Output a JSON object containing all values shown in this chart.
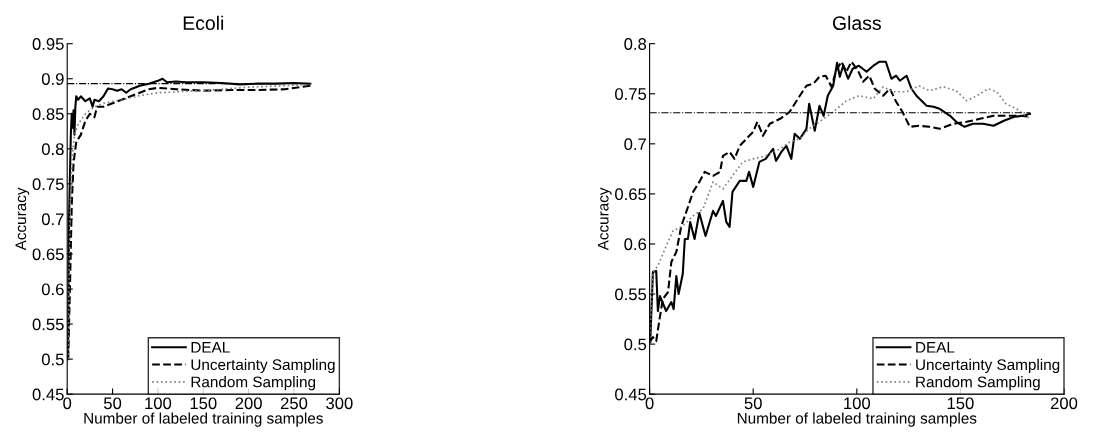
{
  "chart_data": [
    {
      "type": "line",
      "title": "Ecoli",
      "xlabel": "Number of labeled training samples",
      "ylabel": "Accuracy",
      "xlim": [
        0,
        300
      ],
      "xticks": [
        0,
        50,
        100,
        150,
        200,
        250,
        300
      ],
      "ylim": [
        0.45,
        0.95
      ],
      "yticks": [
        0.45,
        0.5,
        0.55,
        0.6,
        0.65,
        0.7,
        0.75,
        0.8,
        0.85,
        0.9,
        0.95
      ],
      "grid": false,
      "legend": "bottom right",
      "marker": "none",
      "ref_lines": [
        {
          "axis": "y",
          "value": 0.893,
          "color": "#000000",
          "line_style": "dashdot"
        }
      ],
      "series": [
        {
          "name": "DEAL",
          "color": "#000000",
          "line_style": "solid",
          "x": [
            1,
            2,
            3,
            4,
            5,
            6,
            7,
            8,
            9,
            10,
            12,
            15,
            20,
            25,
            28,
            30,
            35,
            40,
            45,
            50,
            55,
            60,
            65,
            70,
            80,
            90,
            100,
            105,
            110,
            120,
            130,
            150,
            170,
            190,
            210,
            230,
            250,
            268
          ],
          "values": [
            0.5,
            0.7,
            0.76,
            0.82,
            0.85,
            0.83,
            0.855,
            0.82,
            0.86,
            0.875,
            0.87,
            0.875,
            0.868,
            0.872,
            0.86,
            0.87,
            0.868,
            0.875,
            0.886,
            0.885,
            0.883,
            0.885,
            0.88,
            0.885,
            0.89,
            0.893,
            0.897,
            0.9,
            0.895,
            0.896,
            0.895,
            0.895,
            0.894,
            0.892,
            0.893,
            0.893,
            0.894,
            0.893
          ]
        },
        {
          "name": "Uncertainty Sampling",
          "color": "#000000",
          "line_style": "dashed",
          "x": [
            1,
            3,
            5,
            7,
            10,
            15,
            20,
            25,
            30,
            33,
            40,
            50,
            60,
            70,
            80,
            90,
            100,
            120,
            150,
            180,
            210,
            240,
            268
          ],
          "values": [
            0.5,
            0.6,
            0.72,
            0.78,
            0.81,
            0.82,
            0.84,
            0.85,
            0.845,
            0.86,
            0.86,
            0.865,
            0.87,
            0.875,
            0.88,
            0.885,
            0.887,
            0.885,
            0.883,
            0.884,
            0.884,
            0.885,
            0.89
          ]
        },
        {
          "name": "Random Sampling",
          "color": "#808080",
          "line_style": "dotted",
          "x": [
            1,
            3,
            5,
            8,
            12,
            20,
            30,
            40,
            60,
            80,
            100,
            130,
            160,
            200,
            240,
            268
          ],
          "values": [
            0.5,
            0.7,
            0.78,
            0.82,
            0.835,
            0.85,
            0.86,
            0.865,
            0.87,
            0.876,
            0.88,
            0.882,
            0.884,
            0.888,
            0.89,
            0.892
          ]
        }
      ]
    },
    {
      "type": "line",
      "title": "Glass",
      "xlabel": "Number of labeled training samples",
      "ylabel": "Accuracy",
      "xlim": [
        0,
        200
      ],
      "xticks": [
        0,
        50,
        100,
        150,
        200
      ],
      "ylim": [
        0.45,
        0.8
      ],
      "yticks": [
        0.45,
        0.5,
        0.55,
        0.6,
        0.65,
        0.7,
        0.75,
        0.8
      ],
      "grid": false,
      "legend": "bottom right",
      "marker": "none",
      "ref_lines": [
        {
          "axis": "y",
          "value": 0.731,
          "color": "#000000",
          "line_style": "dashdot"
        }
      ],
      "series": [
        {
          "name": "DEAL",
          "color": "#000000",
          "line_style": "solid",
          "x": [
            0.3,
            1.6,
            3.2,
            4,
            5,
            8,
            10.5,
            11.6,
            12.9,
            14,
            16,
            17,
            18.5,
            19.6,
            21.7,
            24,
            27,
            30.6,
            32,
            35.4,
            37,
            38.6,
            40,
            43.5,
            46.7,
            48,
            50,
            53,
            56,
            59.6,
            61,
            63.6,
            66,
            68.4,
            70,
            72.5,
            75.7,
            77,
            79.7,
            82,
            84,
            86,
            88.6,
            90.5,
            91.8,
            93.4,
            95.8,
            98,
            101,
            104.7,
            108,
            111,
            114,
            116.7,
            119,
            120.8,
            124,
            126.4,
            128.8,
            133.7,
            137,
            140,
            145,
            148,
            152,
            156,
            161,
            166,
            171,
            176,
            180,
            183.6
          ],
          "values": [
            0.502,
            0.572,
            0.573,
            0.533,
            0.548,
            0.533,
            0.542,
            0.535,
            0.568,
            0.55,
            0.57,
            0.605,
            0.605,
            0.622,
            0.605,
            0.631,
            0.608,
            0.633,
            0.628,
            0.643,
            0.622,
            0.617,
            0.652,
            0.663,
            0.663,
            0.672,
            0.657,
            0.682,
            0.685,
            0.695,
            0.683,
            0.692,
            0.698,
            0.685,
            0.71,
            0.705,
            0.715,
            0.74,
            0.713,
            0.738,
            0.728,
            0.748,
            0.758,
            0.781,
            0.767,
            0.778,
            0.765,
            0.775,
            0.778,
            0.772,
            0.778,
            0.782,
            0.782,
            0.765,
            0.768,
            0.763,
            0.768,
            0.755,
            0.748,
            0.738,
            0.737,
            0.735,
            0.728,
            0.722,
            0.717,
            0.72,
            0.72,
            0.718,
            0.723,
            0.727,
            0.728,
            0.73
          ]
        },
        {
          "name": "Uncertainty Sampling",
          "color": "#000000",
          "line_style": "dashed",
          "x": [
            0,
            1.6,
            3.2,
            4.8,
            6.4,
            8.9,
            10.5,
            12.9,
            15.3,
            17.7,
            21,
            24,
            26.6,
            30.6,
            34,
            35.4,
            38.6,
            41,
            43.5,
            46.7,
            50,
            52,
            54.7,
            58,
            63,
            67.6,
            72.5,
            75.7,
            79,
            82,
            85,
            87.8,
            90,
            92.6,
            95,
            97.4,
            100.6,
            103,
            106,
            108.7,
            112.7,
            116,
            119,
            122,
            125.6,
            130,
            135,
            140,
            146.5,
            153,
            159.4,
            166,
            172,
            179,
            183.6
          ],
          "values": [
            0.502,
            0.507,
            0.503,
            0.525,
            0.545,
            0.552,
            0.582,
            0.592,
            0.618,
            0.632,
            0.652,
            0.662,
            0.672,
            0.668,
            0.672,
            0.688,
            0.692,
            0.685,
            0.698,
            0.705,
            0.712,
            0.722,
            0.708,
            0.72,
            0.725,
            0.732,
            0.748,
            0.758,
            0.76,
            0.767,
            0.768,
            0.757,
            0.773,
            0.782,
            0.772,
            0.782,
            0.773,
            0.762,
            0.768,
            0.755,
            0.748,
            0.755,
            0.742,
            0.732,
            0.717,
            0.718,
            0.717,
            0.715,
            0.72,
            0.722,
            0.725,
            0.728,
            0.728,
            0.728,
            0.727
          ]
        },
        {
          "name": "Random Sampling",
          "color": "#808080",
          "line_style": "dotted",
          "x": [
            0,
            1.6,
            4,
            8,
            11.3,
            16,
            21,
            25.8,
            30.6,
            35.4,
            40,
            45,
            50,
            56,
            63,
            67.6,
            72.5,
            77,
            82,
            88.6,
            95,
            101,
            108,
            112.7,
            117.5,
            124,
            130,
            135,
            141.7,
            148,
            153,
            158,
            163.4,
            167.5,
            172,
            177,
            183.6
          ],
          "values": [
            0.502,
            0.572,
            0.578,
            0.598,
            0.613,
            0.618,
            0.628,
            0.635,
            0.662,
            0.655,
            0.668,
            0.682,
            0.685,
            0.688,
            0.695,
            0.702,
            0.705,
            0.715,
            0.722,
            0.732,
            0.743,
            0.748,
            0.745,
            0.757,
            0.752,
            0.752,
            0.758,
            0.753,
            0.757,
            0.753,
            0.743,
            0.748,
            0.755,
            0.752,
            0.74,
            0.735,
            0.725
          ]
        }
      ]
    }
  ]
}
